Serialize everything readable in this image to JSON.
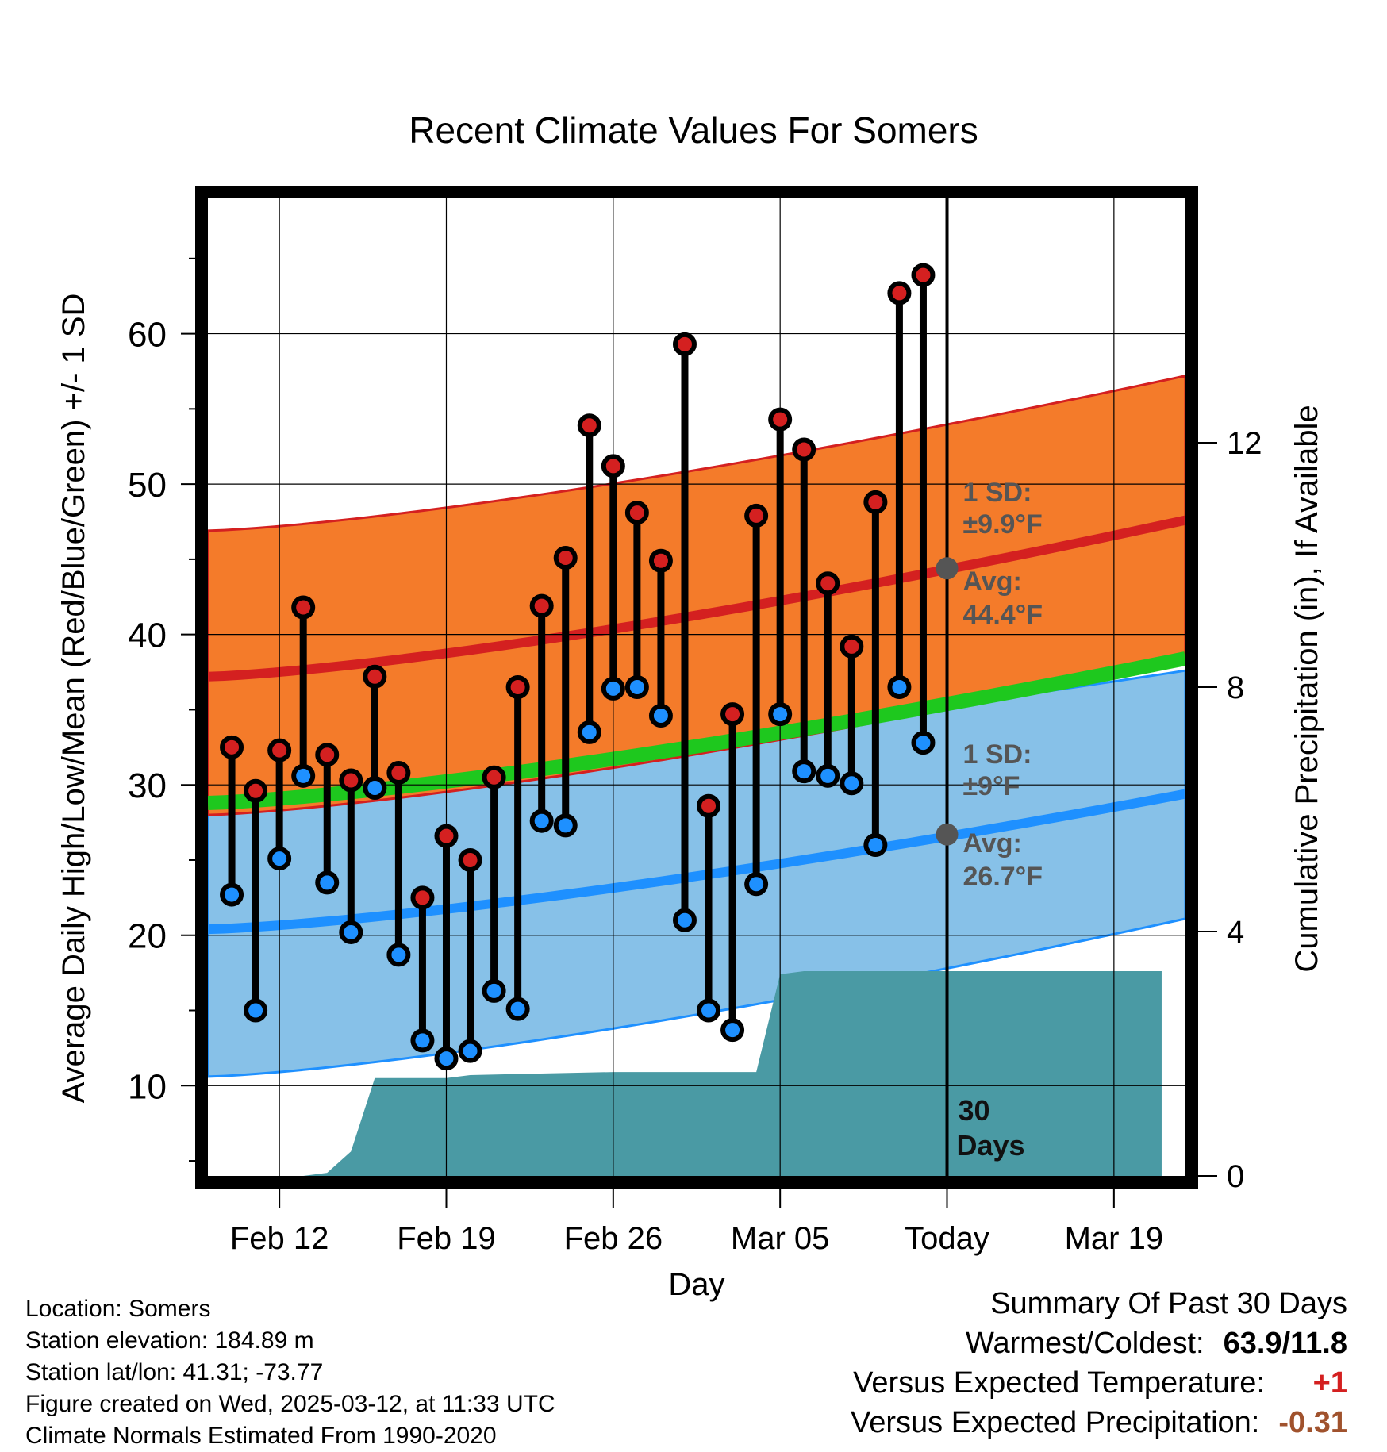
{
  "title": "Recent Climate Values For Somers",
  "chart_data": {
    "type": "line",
    "title": "Recent Climate Values For Somers",
    "xlabel": "Day",
    "ylabel": "Average Daily High/Low/Mean (Red/Blue/Green) +/- 1 SD",
    "y2label": "Cumulative Precipitation (in), If Available",
    "x_ticks": [
      "Feb 12",
      "Feb 19",
      "Feb 26",
      "Mar 05",
      "Today",
      "Mar 19"
    ],
    "x_tick_day": [
      0,
      7,
      14,
      21,
      28,
      35
    ],
    "xlim_day": [
      -3,
      38
    ],
    "ylim": [
      4,
      69
    ],
    "y_ticks": [
      10,
      20,
      30,
      40,
      50,
      60
    ],
    "y2lim": [
      0,
      12
    ],
    "y2_ticks": [
      0,
      4,
      8,
      12
    ],
    "grid": true,
    "today_marker": {
      "label_line1": "30",
      "label_line2": "Days"
    },
    "normals": {
      "high_mean": {
        "start": 37.2,
        "end": 47.6
      },
      "high_sd_upper": {
        "start": 46.9,
        "end": 57.2
      },
      "high_sd_lower": {
        "start": 28.0,
        "end": 38.3
      },
      "low_mean": {
        "start": 20.4,
        "end": 29.4
      },
      "low_sd_upper": {
        "start": 30.2,
        "end": 37.6
      },
      "low_sd_lower": {
        "start": 10.6,
        "end": 21.1
      },
      "overall_mean": {
        "start": 28.8,
        "end": 38.4
      },
      "high_annotation": {
        "sd_label": "1 SD:",
        "sd_value": "±9.9°F",
        "avg_label": "Avg:",
        "avg_value": "44.4°F",
        "avg": 44.4
      },
      "low_annotation": {
        "sd_label": "1 SD:",
        "sd_value": "±9°F",
        "avg_label": "Avg:",
        "avg_value": "26.7°F",
        "avg": 26.7
      }
    },
    "series": [
      {
        "name": "High",
        "color": "#d42020",
        "day": [
          -2,
          -1,
          0,
          1,
          2,
          3,
          4,
          5,
          6,
          7,
          8,
          9,
          10,
          11,
          12,
          13,
          14,
          15,
          16,
          17,
          18,
          19,
          20,
          21,
          22,
          23,
          24,
          25,
          26,
          27
        ],
        "values": [
          32.5,
          29.6,
          32.3,
          41.8,
          32.0,
          30.3,
          37.2,
          30.8,
          22.5,
          26.6,
          25.0,
          30.5,
          36.5,
          41.9,
          45.1,
          53.9,
          51.2,
          48.1,
          44.9,
          59.3,
          28.6,
          34.7,
          47.9,
          54.3,
          52.3,
          43.4,
          39.2,
          48.8,
          62.7,
          63.9
        ]
      },
      {
        "name": "Low",
        "color": "#1e90ff",
        "day": [
          -2,
          -1,
          0,
          1,
          2,
          3,
          4,
          5,
          6,
          7,
          8,
          9,
          10,
          11,
          12,
          13,
          14,
          15,
          16,
          17,
          18,
          19,
          20,
          21,
          22,
          23,
          24,
          25,
          26,
          27
        ],
        "values": [
          22.7,
          15.0,
          25.1,
          30.6,
          23.5,
          20.2,
          29.8,
          18.7,
          13.0,
          11.8,
          12.3,
          16.3,
          15.1,
          27.6,
          27.3,
          33.5,
          36.4,
          36.5,
          34.6,
          21.0,
          15.0,
          13.7,
          23.4,
          34.7,
          30.9,
          30.6,
          30.1,
          26.0,
          36.5,
          32.8
        ]
      }
    ],
    "precipitation": {
      "name": "Cumulative Precipitation",
      "color": "#4a9aa4",
      "day": [
        -3,
        1,
        2,
        3,
        4,
        7,
        8,
        14,
        20,
        21,
        22,
        37
      ],
      "values": [
        0,
        0,
        0.05,
        0.4,
        1.6,
        1.6,
        1.65,
        1.7,
        1.7,
        3.3,
        3.35,
        3.35
      ]
    }
  },
  "footer": {
    "location": "Location: Somers",
    "elevation": "Station elevation: 184.89 m",
    "latlon": "Station lat/lon: 41.31; -73.77",
    "created": "Figure created on Wed, 2025-03-12, at 11:33 UTC",
    "normals": "Climate Normals Estimated From 1990-2020"
  },
  "summary": {
    "heading": "Summary Of Past 30 Days",
    "warmest_label": "Warmest/Coldest:",
    "warmest_value": "63.9/11.8",
    "temp_label": "Versus Expected Temperature:",
    "temp_value": "+1",
    "temp_color": "#d42020",
    "precip_label": "Versus Expected Precipitation:",
    "precip_value": "-0.31",
    "precip_color": "#a0522d"
  }
}
